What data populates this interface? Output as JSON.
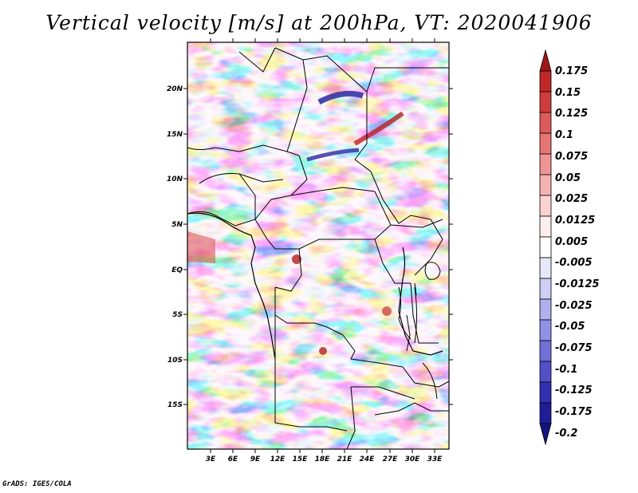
{
  "title": "Vertical velocity [m/s] at 200hPa, VT: 2020041906",
  "credit": "GrADS: IGES/COLA",
  "lat_labels": [
    "20N",
    "15N",
    "10N",
    "5N",
    "EQ",
    "5S",
    "10S",
    "15S"
  ],
  "lon_labels": [
    "3E",
    "6E",
    "9E",
    "12E",
    "15E",
    "18E",
    "21E",
    "24E",
    "27E",
    "30E",
    "33E"
  ],
  "colorbar": {
    "labels": [
      "0.175",
      "0.15",
      "0.125",
      "0.1",
      "0.075",
      "0.05",
      "0.025",
      "0.0125",
      "0.005",
      "-0.005",
      "-0.0125",
      "-0.025",
      "-0.05",
      "-0.075",
      "-0.1",
      "-0.125",
      "-0.175",
      "-0.2"
    ],
    "colors": [
      "#a01818",
      "#c02828",
      "#d03c3c",
      "#dc5a5a",
      "#e67676",
      "#ee9494",
      "#f5b2b2",
      "#fad2d2",
      "#fdeeee",
      "#ffffff",
      "#e8e8fb",
      "#cfcff5",
      "#b0b0ee",
      "#9090e4",
      "#7070d8",
      "#5050c8",
      "#3030b0",
      "#1e1e98",
      "#141480"
    ]
  }
}
